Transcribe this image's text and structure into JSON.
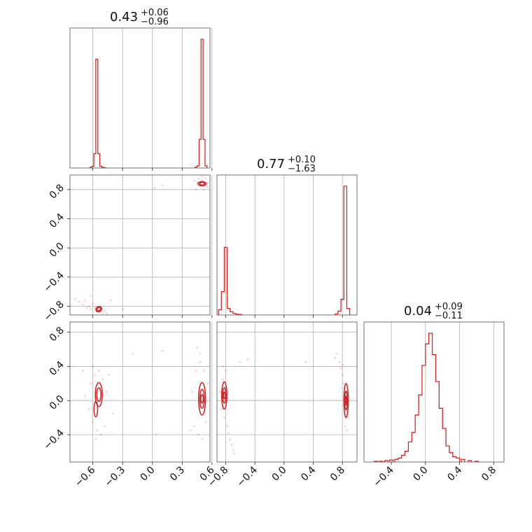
{
  "colors": {
    "series": "#d62728",
    "grid": "#b0b0b0",
    "frame": "#4d4d4d"
  },
  "chart_data": {
    "type": "corner",
    "grid": true,
    "params": [
      {
        "range": [
          -0.83,
          0.58
        ],
        "ticks": [
          -0.6,
          -0.3,
          0.0,
          0.3,
          0.6
        ],
        "tick_labels": [
          "−0.6",
          "−0.3",
          "0.0",
          "0.3",
          "0.6"
        ],
        "title": {
          "value": "0.43",
          "plus": "+0.06",
          "minus": "−0.96"
        }
      },
      {
        "range": [
          -0.92,
          1.0
        ],
        "ticks": [
          -0.8,
          -0.4,
          0.0,
          0.4,
          0.8
        ],
        "tick_labels": [
          "−0.8",
          "−0.4",
          "0.0",
          "0.4",
          "0.8"
        ],
        "title": {
          "value": "0.77",
          "plus": "+0.10",
          "minus": "−1.63"
        }
      },
      {
        "range": [
          -0.72,
          0.92
        ],
        "ticks": [
          -0.4,
          0.0,
          0.4,
          0.8
        ],
        "tick_labels": [
          "−0.4",
          "0.0",
          "0.4",
          "0.8"
        ],
        "y_ticks": [
          -0.4,
          0.0,
          0.4,
          0.8
        ],
        "y_tick_labels": [
          "−0.4",
          "0.0",
          "0.4",
          "0.8"
        ],
        "title": {
          "value": "0.04",
          "plus": "+0.09",
          "minus": "−0.11"
        }
      }
    ],
    "histograms": [
      {
        "param": 0,
        "x": [
          -0.62,
          -0.6,
          -0.58,
          -0.56,
          -0.54,
          -0.52,
          -0.5,
          -0.48,
          0.44,
          0.46,
          0.48,
          0.5,
          0.52,
          0.54
        ],
        "values": [
          0.005,
          0.012,
          0.1,
          0.76,
          0.1,
          0.012,
          0.005,
          0.002,
          0.006,
          0.015,
          0.2,
          0.9,
          0.2,
          0.015
        ]
      },
      {
        "param": 1,
        "x": [
          -0.88,
          -0.84,
          -0.8,
          -0.76,
          -0.72,
          -0.68,
          -0.64,
          -0.6,
          0.72,
          0.76,
          0.8,
          0.84,
          0.88
        ],
        "values": [
          0.04,
          0.18,
          0.52,
          0.05,
          0.025,
          0.012,
          0.006,
          0.004,
          0.008,
          0.03,
          0.12,
          0.99,
          0.05
        ]
      },
      {
        "param": 2,
        "x": [
          -0.58,
          -0.52,
          -0.46,
          -0.4,
          -0.34,
          -0.3,
          -0.26,
          -0.22,
          -0.18,
          -0.14,
          -0.1,
          -0.06,
          -0.02,
          0.02,
          0.06,
          0.1,
          0.14,
          0.18,
          0.22,
          0.26,
          0.3,
          0.34,
          0.38,
          0.44,
          0.52,
          0.6
        ],
        "values": [
          0.005,
          0.005,
          0.01,
          0.015,
          0.02,
          0.03,
          0.05,
          0.08,
          0.15,
          0.22,
          0.35,
          0.5,
          0.72,
          0.88,
          0.96,
          0.8,
          0.6,
          0.4,
          0.25,
          0.12,
          0.07,
          0.04,
          0.03,
          0.02,
          0.01,
          0.005
        ]
      }
    ],
    "scatter_panels": [
      {
        "x_param": 0,
        "y_param": 1,
        "points": [
          [
            -0.78,
            -0.7
          ],
          [
            -0.74,
            -0.74
          ],
          [
            -0.7,
            -0.78
          ],
          [
            -0.68,
            -0.72
          ],
          [
            -0.64,
            -0.8
          ],
          [
            -0.62,
            -0.84
          ],
          [
            -0.6,
            -0.76
          ],
          [
            -0.58,
            -0.82
          ],
          [
            -0.56,
            -0.86
          ],
          [
            -0.54,
            -0.88
          ],
          [
            -0.52,
            -0.84
          ],
          [
            -0.5,
            -0.9
          ],
          [
            -0.48,
            -0.86
          ],
          [
            -0.46,
            -0.9
          ],
          [
            -0.62,
            -0.66
          ],
          [
            -0.66,
            -0.82
          ],
          [
            -0.3,
            -0.84
          ],
          [
            -0.42,
            -0.72
          ],
          [
            0.42,
            0.92
          ],
          [
            0.45,
            0.9
          ],
          [
            0.47,
            0.95
          ],
          [
            0.5,
            0.93
          ],
          [
            0.52,
            0.8
          ],
          [
            0.54,
            0.88
          ],
          [
            0.56,
            0.9
          ],
          [
            0.44,
            0.8
          ],
          [
            0.5,
            0.98
          ],
          [
            0.53,
            0.96
          ],
          [
            0.55,
            0.84
          ],
          [
            0.1,
            0.86
          ],
          [
            0.02,
            0.82
          ]
        ],
        "contours": [
          {
            "cx": -0.54,
            "cy": -0.84,
            "rx": 0.03,
            "ry": 0.035,
            "rot": -30
          },
          {
            "cx": -0.54,
            "cy": -0.84,
            "rx": 0.02,
            "ry": 0.02,
            "rot": -30
          },
          {
            "cx": 0.5,
            "cy": 0.88,
            "rx": 0.04,
            "ry": 0.03,
            "rot": 0
          },
          {
            "cx": 0.5,
            "cy": 0.88,
            "rx": 0.025,
            "ry": 0.018,
            "rot": 0
          }
        ]
      },
      {
        "x_param": 0,
        "y_param": 2,
        "points": [
          [
            -0.68,
            0.05
          ],
          [
            -0.64,
            -0.1
          ],
          [
            -0.62,
            0.2
          ],
          [
            -0.6,
            -0.25
          ],
          [
            -0.58,
            0.3
          ],
          [
            -0.56,
            -0.35
          ],
          [
            -0.54,
            0.35
          ],
          [
            -0.52,
            -0.4
          ],
          [
            -0.5,
            0.25
          ],
          [
            -0.48,
            -0.3
          ],
          [
            -0.46,
            0.1
          ],
          [
            -0.44,
            0.3
          ],
          [
            -0.57,
            -0.45
          ],
          [
            -0.6,
            0.4
          ],
          [
            -0.7,
            0.35
          ],
          [
            -0.4,
            -0.15
          ],
          [
            0.4,
            0.1
          ],
          [
            0.42,
            -0.3
          ],
          [
            0.44,
            0.35
          ],
          [
            0.46,
            -0.4
          ],
          [
            0.48,
            0.45
          ],
          [
            0.5,
            -0.45
          ],
          [
            0.52,
            0.35
          ],
          [
            0.54,
            -0.25
          ],
          [
            0.56,
            0.2
          ],
          [
            0.45,
            0.62
          ],
          [
            0.48,
            0.55
          ],
          [
            0.38,
            -0.35
          ],
          [
            0.1,
            0.58
          ],
          [
            -0.2,
            0.55
          ],
          [
            0.04,
            -0.4
          ]
        ],
        "contours": [
          {
            "cx": -0.54,
            "cy": 0.07,
            "rx": 0.035,
            "ry": 0.14,
            "rot": 0
          },
          {
            "cx": -0.54,
            "cy": 0.07,
            "rx": 0.022,
            "ry": 0.08,
            "rot": 0
          },
          {
            "cx": -0.57,
            "cy": -0.1,
            "rx": 0.018,
            "ry": 0.09,
            "rot": 0
          },
          {
            "cx": 0.5,
            "cy": 0.02,
            "rx": 0.035,
            "ry": 0.19,
            "rot": 0
          },
          {
            "cx": 0.5,
            "cy": 0.02,
            "rx": 0.022,
            "ry": 0.11,
            "rot": 0
          },
          {
            "cx": 0.5,
            "cy": 0.02,
            "rx": 0.012,
            "ry": 0.05,
            "rot": 0
          }
        ]
      },
      {
        "x_param": 1,
        "y_param": 2,
        "points": [
          [
            -0.88,
            0.1
          ],
          [
            -0.86,
            -0.1
          ],
          [
            -0.84,
            0.25
          ],
          [
            -0.82,
            -0.2
          ],
          [
            -0.8,
            0.15
          ],
          [
            -0.78,
            -0.3
          ],
          [
            -0.76,
            -0.38
          ],
          [
            -0.74,
            -0.46
          ],
          [
            -0.72,
            -0.52
          ],
          [
            -0.7,
            -0.58
          ],
          [
            -0.68,
            -0.62
          ],
          [
            -0.8,
            0.35
          ],
          [
            -0.84,
            0.4
          ],
          [
            -0.6,
            0.45
          ],
          [
            0.76,
            0.45
          ],
          [
            0.78,
            0.38
          ],
          [
            0.8,
            0.3
          ],
          [
            0.82,
            0.2
          ],
          [
            0.84,
            0.1
          ],
          [
            0.86,
            -0.05
          ],
          [
            0.88,
            -0.2
          ],
          [
            0.84,
            -0.3
          ],
          [
            0.8,
            0.42
          ],
          [
            0.72,
            0.55
          ],
          [
            0.7,
            0.5
          ],
          [
            0.86,
            -0.35
          ],
          [
            -0.5,
            0.48
          ],
          [
            0.3,
            0.45
          ]
        ],
        "contours": [
          {
            "cx": -0.82,
            "cy": 0.06,
            "rx": 0.035,
            "ry": 0.16,
            "rot": 0
          },
          {
            "cx": -0.82,
            "cy": 0.06,
            "rx": 0.022,
            "ry": 0.09,
            "rot": 0
          },
          {
            "cx": -0.82,
            "cy": 0.06,
            "rx": 0.012,
            "ry": 0.04,
            "rot": 0
          },
          {
            "cx": 0.85,
            "cy": 0.0,
            "rx": 0.03,
            "ry": 0.2,
            "rot": 0
          },
          {
            "cx": 0.85,
            "cy": 0.0,
            "rx": 0.018,
            "ry": 0.11,
            "rot": 0
          },
          {
            "cx": 0.85,
            "cy": 0.0,
            "rx": 0.008,
            "ry": 0.05,
            "rot": 0
          }
        ]
      }
    ]
  }
}
